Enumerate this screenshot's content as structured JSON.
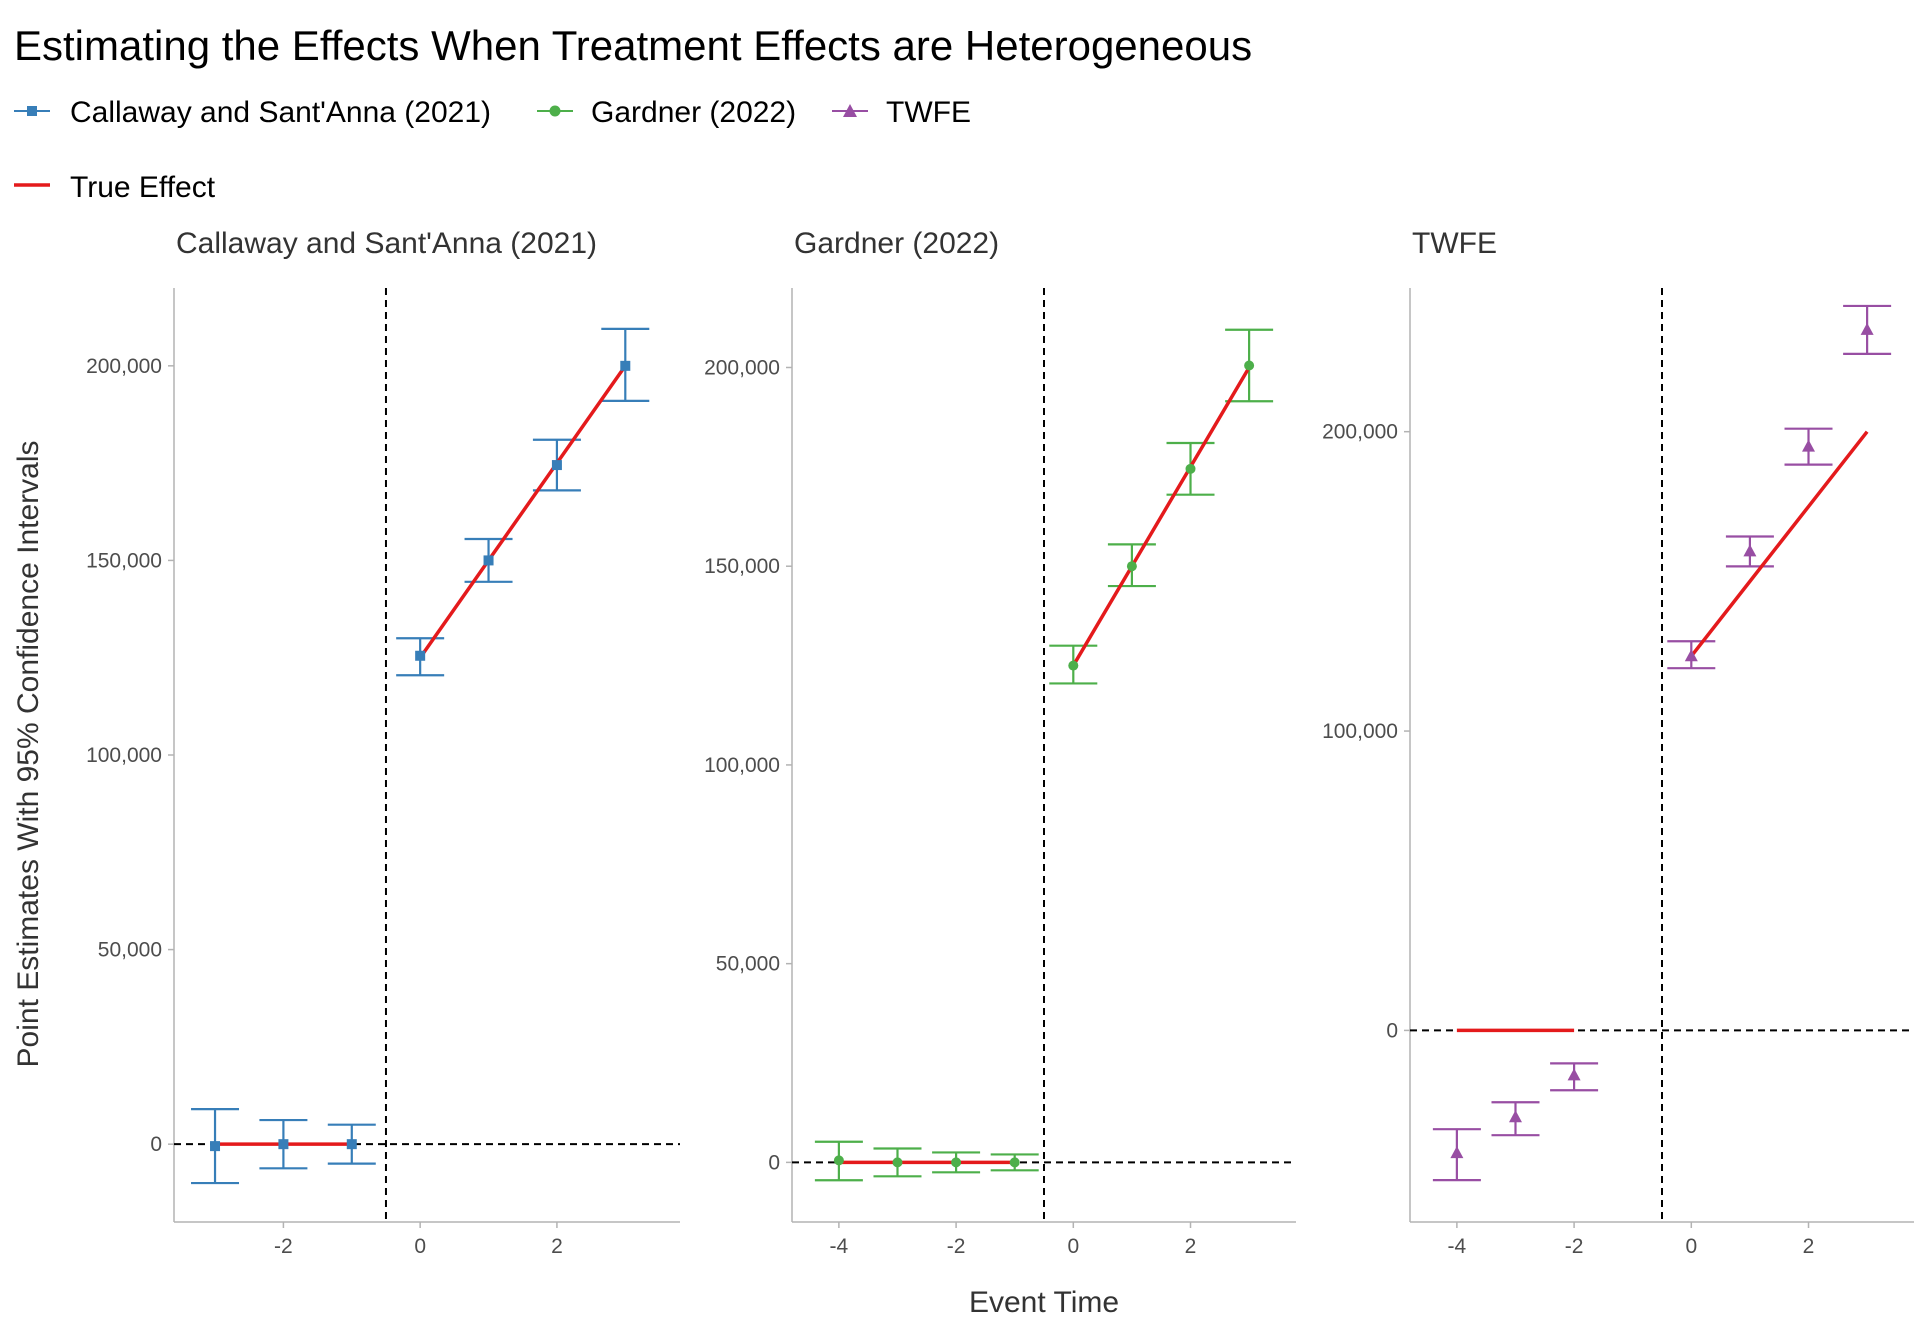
{
  "chart_data": {
    "type": "scatter",
    "title": "Estimating the Effects When Treatment Effects are Heterogeneous",
    "xlabel": "Event Time",
    "ylabel": "Point Estimates With 95% Confidence Intervals",
    "legend": {
      "placement": "top-left",
      "estimators": [
        {
          "name": "Callaway and Sant'Anna (2021)",
          "color": "#377eb8",
          "shape": "square"
        },
        {
          "name": "Gardner (2022)",
          "color": "#4daf4a",
          "shape": "circle"
        },
        {
          "name": "TWFE",
          "color": "#984ea3",
          "shape": "triangle"
        }
      ],
      "true_effect": {
        "name": "True Effect",
        "color": "#e41a1c"
      }
    },
    "treatment_line_x": -0.5,
    "panels": [
      {
        "name": "Callaway and Sant'Anna (2021)",
        "color": "#377eb8",
        "shape": "square",
        "xlim": [
          -3.6,
          3.8
        ],
        "ylim": [
          -20000,
          220000
        ],
        "xticks": [
          -2,
          0,
          2
        ],
        "xtick_labels": [
          "-2",
          "0",
          "2"
        ],
        "yticks": [
          0,
          50000,
          100000,
          150000,
          200000
        ],
        "ytick_labels": [
          "0",
          "50,000",
          "100,000",
          "150,000",
          "200,000"
        ],
        "points": [
          {
            "x": -3,
            "y": -500,
            "lo": -10000,
            "hi": 9000
          },
          {
            "x": -2,
            "y": 0,
            "lo": -6200,
            "hi": 6200
          },
          {
            "x": -1,
            "y": 0,
            "lo": -5000,
            "hi": 5000
          },
          {
            "x": 0,
            "y": 125500,
            "lo": 120500,
            "hi": 130000
          },
          {
            "x": 1,
            "y": 150000,
            "lo": 144500,
            "hi": 155500
          },
          {
            "x": 2,
            "y": 174500,
            "lo": 168000,
            "hi": 181000
          },
          {
            "x": 3,
            "y": 200000,
            "lo": 191000,
            "hi": 209500
          }
        ],
        "true_effect": [
          {
            "x": -3,
            "y": 0
          },
          {
            "x": -2,
            "y": 0
          },
          {
            "x": -1,
            "y": 0
          },
          {
            "x": 0,
            "y": 125000
          },
          {
            "x": 1,
            "y": 150000
          },
          {
            "x": 2,
            "y": 175000
          },
          {
            "x": 3,
            "y": 200000
          }
        ]
      },
      {
        "name": "Gardner (2022)",
        "color": "#4daf4a",
        "shape": "circle",
        "xlim": [
          -4.8,
          3.8
        ],
        "ylim": [
          -15000,
          220000
        ],
        "xticks": [
          -4,
          -2,
          0,
          2
        ],
        "xtick_labels": [
          "-4",
          "-2",
          "0",
          "2"
        ],
        "yticks": [
          0,
          50000,
          100000,
          150000,
          200000
        ],
        "ytick_labels": [
          "0",
          "50,000",
          "100,000",
          "150,000",
          "200,000"
        ],
        "points": [
          {
            "x": -4,
            "y": 500,
            "lo": -4500,
            "hi": 5200
          },
          {
            "x": -3,
            "y": 0,
            "lo": -3500,
            "hi": 3500
          },
          {
            "x": -2,
            "y": 0,
            "lo": -2500,
            "hi": 2500
          },
          {
            "x": -1,
            "y": 0,
            "lo": -2000,
            "hi": 2000
          },
          {
            "x": 0,
            "y": 125000,
            "lo": 120500,
            "hi": 130000
          },
          {
            "x": 1,
            "y": 150000,
            "lo": 145000,
            "hi": 155500
          },
          {
            "x": 2,
            "y": 174500,
            "lo": 168000,
            "hi": 181000
          },
          {
            "x": 3,
            "y": 200500,
            "lo": 191500,
            "hi": 209500
          }
        ],
        "true_effect": [
          {
            "x": -4,
            "y": 0
          },
          {
            "x": -3,
            "y": 0
          },
          {
            "x": -2,
            "y": 0
          },
          {
            "x": -1,
            "y": 0
          },
          {
            "x": 0,
            "y": 125000
          },
          {
            "x": 1,
            "y": 150000
          },
          {
            "x": 2,
            "y": 175000
          },
          {
            "x": 3,
            "y": 200000
          }
        ]
      },
      {
        "name": "TWFE",
        "color": "#984ea3",
        "shape": "triangle",
        "xlim": [
          -4.8,
          3.8
        ],
        "ylim": [
          -64000,
          248000
        ],
        "xticks": [
          -4,
          -2,
          0,
          2
        ],
        "xtick_labels": [
          "-4",
          "-2",
          "0",
          "2"
        ],
        "yticks": [
          0,
          100000,
          200000
        ],
        "ytick_labels": [
          "0",
          "100,000",
          "200,000"
        ],
        "points": [
          {
            "x": -4,
            "y": -41000,
            "lo": -50000,
            "hi": -33000
          },
          {
            "x": -3,
            "y": -29000,
            "lo": -35000,
            "hi": -24000
          },
          {
            "x": -2,
            "y": -15000,
            "lo": -20000,
            "hi": -11000
          },
          {
            "x": 0,
            "y": 125000,
            "lo": 121000,
            "hi": 130000
          },
          {
            "x": 1,
            "y": 160000,
            "lo": 155000,
            "hi": 165000
          },
          {
            "x": 2,
            "y": 195000,
            "lo": 189000,
            "hi": 201000
          },
          {
            "x": 3,
            "y": 234000,
            "lo": 226000,
            "hi": 242000
          }
        ],
        "true_effect": [
          {
            "x": -4,
            "y": 0
          },
          {
            "x": -3,
            "y": 0
          },
          {
            "x": -2,
            "y": 0
          },
          {
            "x": 0,
            "y": 125000
          },
          {
            "x": 1,
            "y": 150000
          },
          {
            "x": 2,
            "y": 175000
          },
          {
            "x": 3,
            "y": 200000
          }
        ]
      }
    ]
  }
}
